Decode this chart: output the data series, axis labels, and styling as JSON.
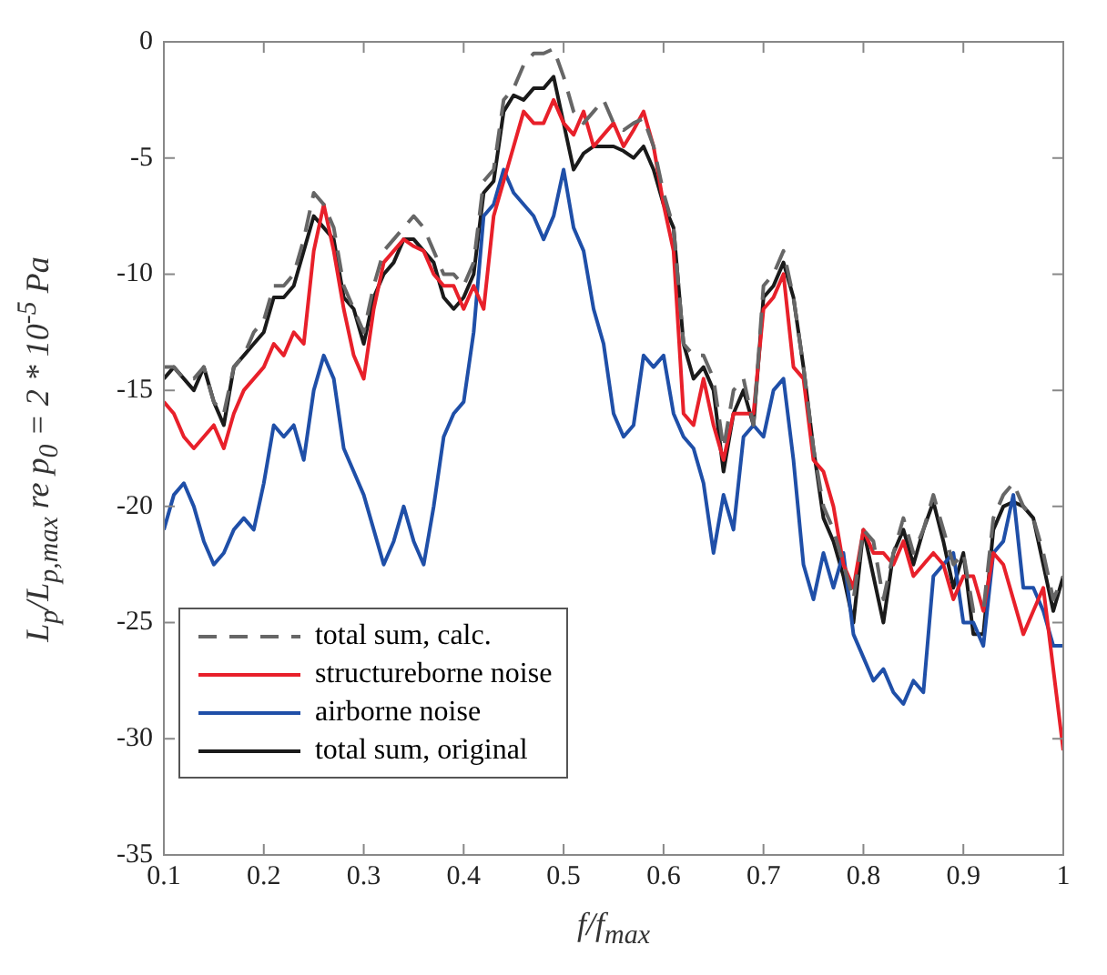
{
  "chart_data": {
    "type": "line",
    "xlabel": "f/f$_{max}$",
    "ylabel": "L$_{p}$/L$_{p,max}$ re p$_{0}$ = 2 * 10$^{-5}$ Pa",
    "x": [
      0.1,
      0.11,
      0.12,
      0.13,
      0.14,
      0.15,
      0.16,
      0.17,
      0.18,
      0.19,
      0.2,
      0.21,
      0.22,
      0.23,
      0.24,
      0.25,
      0.26,
      0.27,
      0.28,
      0.29,
      0.3,
      0.31,
      0.32,
      0.33,
      0.34,
      0.35,
      0.36,
      0.37,
      0.38,
      0.39,
      0.4,
      0.41,
      0.42,
      0.43,
      0.44,
      0.45,
      0.46,
      0.47,
      0.48,
      0.49,
      0.5,
      0.51,
      0.52,
      0.53,
      0.54,
      0.55,
      0.56,
      0.57,
      0.58,
      0.59,
      0.6,
      0.61,
      0.62,
      0.63,
      0.64,
      0.65,
      0.66,
      0.67,
      0.68,
      0.69,
      0.7,
      0.71,
      0.72,
      0.73,
      0.74,
      0.75,
      0.76,
      0.77,
      0.78,
      0.79,
      0.8,
      0.81,
      0.82,
      0.83,
      0.84,
      0.85,
      0.86,
      0.87,
      0.88,
      0.89,
      0.9,
      0.91,
      0.92,
      0.93,
      0.94,
      0.95,
      0.96,
      0.97,
      0.98,
      0.99,
      1.0
    ],
    "series": [
      {
        "name": "total sum, calc.",
        "color": "#666666",
        "line_style": "dashed",
        "values": [
          -14,
          -14,
          -14.5,
          -14.5,
          -14,
          -15.5,
          -16,
          -14,
          -13.5,
          -12.5,
          -12,
          -10.5,
          -10.5,
          -10,
          -8.5,
          -6.5,
          -7,
          -8,
          -10.5,
          -11.5,
          -12.5,
          -10.5,
          -9,
          -8.5,
          -8,
          -7.5,
          -8,
          -9,
          -10,
          -10,
          -10.5,
          -9.5,
          -6,
          -5.5,
          -2.5,
          -2,
          -1,
          -0.5,
          -0.5,
          -0.3,
          -1.5,
          -3,
          -3.5,
          -3,
          -2.5,
          -3.5,
          -3.8,
          -3.5,
          -3.3,
          -4.5,
          -6.5,
          -8,
          -13,
          -13.5,
          -13.5,
          -14.5,
          -17.5,
          -15,
          -14.5,
          -16.5,
          -10.5,
          -10,
          -9,
          -11,
          -14,
          -17.5,
          -20,
          -21,
          -22.5,
          -24,
          -21,
          -21.5,
          -24,
          -22,
          -20.5,
          -22,
          -21,
          -19.5,
          -21,
          -22.5,
          -22,
          -24.5,
          -24.5,
          -20.5,
          -19.5,
          -19,
          -20,
          -20.5,
          -22,
          -24,
          -23
        ]
      },
      {
        "name": "structureborne noise",
        "color": "#e8202a",
        "line_style": "solid",
        "values": [
          -15.5,
          -16,
          -17,
          -17.5,
          -17,
          -16.5,
          -17.5,
          -16,
          -15,
          -14.5,
          -14,
          -13,
          -13.5,
          -12.5,
          -13,
          -9,
          -7,
          -9,
          -11.5,
          -13.5,
          -14.5,
          -11.5,
          -9.5,
          -9,
          -8.5,
          -8.8,
          -9,
          -10,
          -10.5,
          -10.5,
          -11.5,
          -10.5,
          -11.5,
          -7.5,
          -6,
          -4.5,
          -3,
          -3.5,
          -3.5,
          -2.5,
          -3.5,
          -4,
          -3,
          -4.5,
          -4,
          -3.5,
          -4.5,
          -3.8,
          -3,
          -4.5,
          -7,
          -9,
          -16,
          -16.5,
          -14.5,
          -16.5,
          -18,
          -16,
          -16,
          -16,
          -11.5,
          -11,
          -10,
          -14,
          -14.5,
          -18,
          -18.5,
          -20,
          -22.5,
          -23.5,
          -21,
          -22,
          -22,
          -22.5,
          -21.5,
          -23,
          -22.5,
          -22,
          -22.5,
          -24,
          -23,
          -23,
          -24.5,
          -22,
          -22.5,
          -24,
          -25.5,
          -24.5,
          -23.5,
          -27,
          -30.5
        ]
      },
      {
        "name": "airborne noise",
        "color": "#1f4fa8",
        "line_style": "solid",
        "values": [
          -21,
          -19.5,
          -19,
          -20,
          -21.5,
          -22.5,
          -22,
          -21,
          -20.5,
          -21,
          -19,
          -16.5,
          -17,
          -16.5,
          -18,
          -15,
          -13.5,
          -14.5,
          -17.5,
          -18.5,
          -19.5,
          -21,
          -22.5,
          -21.5,
          -20,
          -21.5,
          -22.5,
          -20,
          -17,
          -16,
          -15.5,
          -12.5,
          -7.5,
          -7,
          -5.5,
          -6.5,
          -7,
          -7.5,
          -8.5,
          -7.5,
          -5.5,
          -8,
          -9,
          -11.5,
          -13,
          -16,
          -17,
          -16.5,
          -13.5,
          -14,
          -13.5,
          -16,
          -17,
          -17.5,
          -19,
          -22,
          -19.5,
          -21,
          -17,
          -16.5,
          -17,
          -15,
          -14.5,
          -18,
          -22.5,
          -24,
          -22,
          -23.5,
          -22,
          -25.5,
          -26.5,
          -27.5,
          -27,
          -28,
          -28.5,
          -27.5,
          -28,
          -23,
          -22.5,
          -22,
          -25,
          -25,
          -26,
          -22,
          -21.5,
          -19.5,
          -23.5,
          -23.5,
          -24.5,
          -26,
          -26
        ]
      },
      {
        "name": "total sum, original",
        "color": "#1a1a1a",
        "line_style": "solid",
        "values": [
          -14.5,
          -14,
          -14.5,
          -15,
          -14,
          -15.5,
          -16.5,
          -14,
          -13.5,
          -13,
          -12.5,
          -11,
          -11,
          -10.5,
          -9,
          -7.5,
          -8,
          -8.5,
          -11,
          -11.5,
          -13,
          -11,
          -10,
          -9.5,
          -8.5,
          -8.5,
          -9,
          -9.5,
          -11,
          -11.5,
          -11,
          -10,
          -6.5,
          -6,
          -3,
          -2.3,
          -2.5,
          -2,
          -2,
          -1.5,
          -3.5,
          -5.5,
          -4.8,
          -4.5,
          -4.5,
          -4.5,
          -4.7,
          -5,
          -4.5,
          -5.5,
          -7,
          -8,
          -13,
          -14.5,
          -14,
          -15,
          -18.5,
          -16,
          -15,
          -16.5,
          -11,
          -10.5,
          -9.5,
          -11,
          -14,
          -17.5,
          -20.5,
          -21.5,
          -23,
          -25,
          -21,
          -23,
          -25,
          -22,
          -21,
          -22.5,
          -21,
          -19.8,
          -21.5,
          -23.5,
          -22,
          -25.5,
          -25.5,
          -21,
          -20,
          -19.8,
          -20,
          -20.5,
          -22.5,
          -24.5,
          -23
        ]
      }
    ],
    "xlim": [
      0.1,
      1
    ],
    "xticks": [
      {
        "value": 0.1,
        "label": "0.1"
      },
      {
        "value": 0.2,
        "label": "0.2"
      },
      {
        "value": 0.3,
        "label": "0.3"
      },
      {
        "value": 0.4,
        "label": "0.4"
      },
      {
        "value": 0.5,
        "label": "0.5"
      },
      {
        "value": 0.6,
        "label": "0.6"
      },
      {
        "value": 0.7,
        "label": "0.7"
      },
      {
        "value": 0.8,
        "label": "0.8"
      },
      {
        "value": 0.9,
        "label": "0.9"
      },
      {
        "value": 1,
        "label": "1"
      }
    ],
    "ylim": [
      -35,
      0
    ],
    "yticks": [
      -35,
      -30,
      -25,
      -20,
      -15,
      -10,
      -5,
      0
    ],
    "grid": false,
    "legend": "bottom left",
    "marker": "none"
  }
}
